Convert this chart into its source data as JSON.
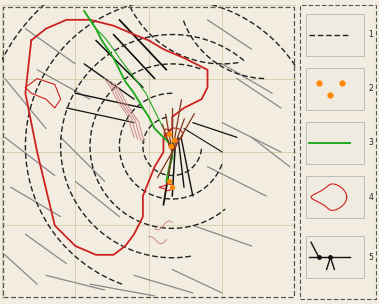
{
  "fig_width": 3.79,
  "fig_height": 3.04,
  "dpi": 100,
  "bg_color": "#f2ede0",
  "map_bg": "#f2ede0",
  "legend_bg": "#ffffff",
  "grid_color": "#c8c090",
  "border_dash_color": "#555555",
  "arc_color": "#222222",
  "gray_line_color": "#888888",
  "dark_line_color": "#111111",
  "red_color": "#cc2222",
  "pink_color": "#cc8888",
  "green_color": "#22aa22",
  "orange_color": "#ff8800",
  "brown_color": "#7a3a1a",
  "xlim": [
    0,
    10
  ],
  "ylim": [
    0,
    10
  ]
}
